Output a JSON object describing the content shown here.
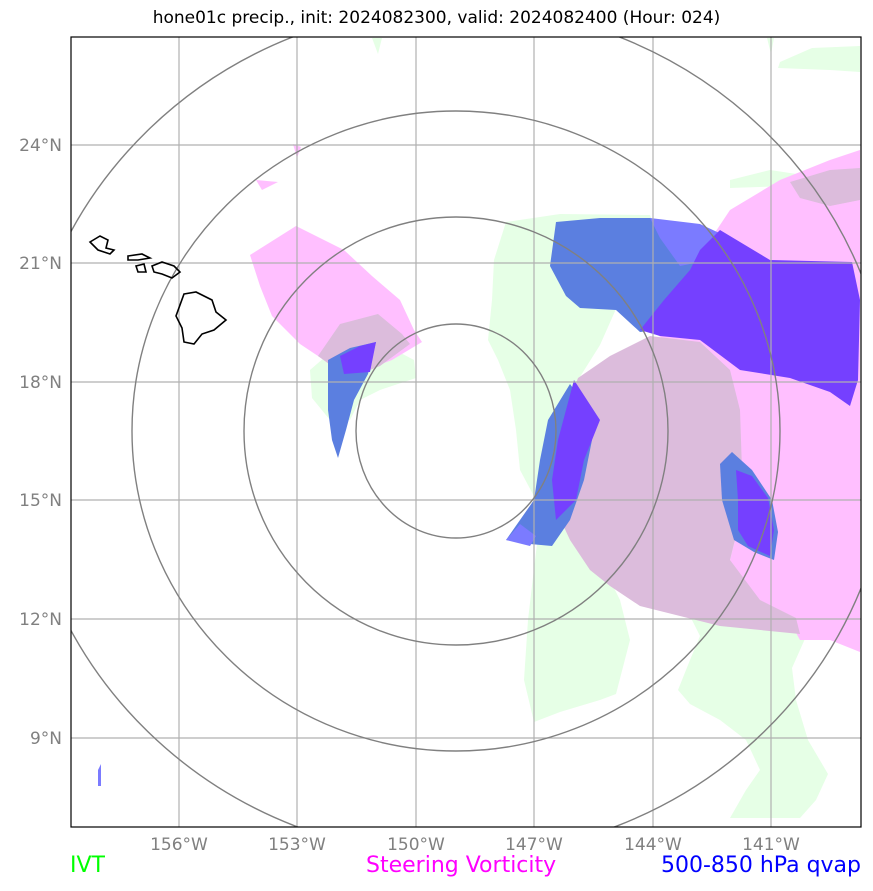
{
  "title": "hone01c precip., init: 2024082300, valid: 2024082400 (Hour: 024)",
  "latitude_labels": [
    "24°N",
    "21°N",
    "18°N",
    "15°N",
    "12°N",
    "9°N"
  ],
  "longitude_labels": [
    "156°W",
    "153°W",
    "150°W",
    "147°W",
    "144°W",
    "141°W"
  ],
  "legend": {
    "ivt": {
      "label": "IVT",
      "color": "#00ff00"
    },
    "steering_vorticity": {
      "label": "Steering Vorticity",
      "color": "#ff00ff"
    },
    "qvap": {
      "label": "500-850 hPa qvap",
      "color": "#0000ff"
    }
  },
  "colors": {
    "ivt_fill": "#e6ffe6",
    "vorticity_fill": "#ffbfff",
    "overlap_fill": "#dcbcdc",
    "qvap_fill": "#5b7fe0",
    "qvap_fill_light": "#7b7bff",
    "qvap_fill_dark": "#7540ff",
    "gridline": "#b0b0b0",
    "range_ring": "#808080",
    "coastline": "#000000"
  },
  "icons": {
    "islands": "hawaii-coastline-icon"
  }
}
